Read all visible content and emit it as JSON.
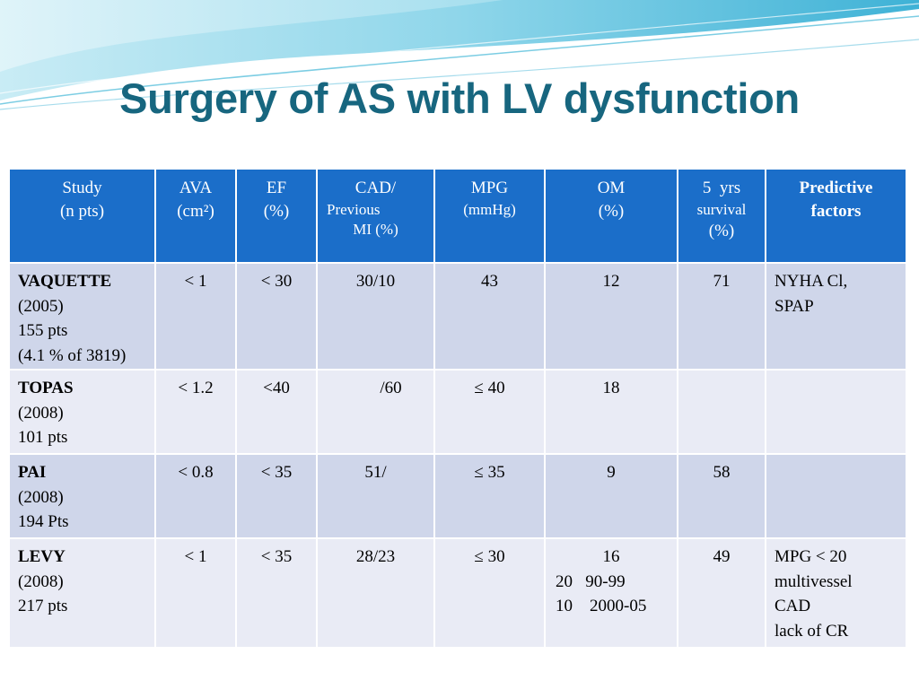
{
  "title": "Surgery of AS with LV dysfunction",
  "header": {
    "study": [
      "Study",
      "(n pts)"
    ],
    "ava": [
      "AVA",
      "(cm²)"
    ],
    "ef": [
      "EF",
      "(%)"
    ],
    "cad": [
      "CAD/",
      "Previous",
      "MI (%)"
    ],
    "mpg": [
      "MPG",
      "(mmHg)"
    ],
    "om": [
      "OM",
      "(%)"
    ],
    "survival": [
      "5  yrs",
      "survival",
      "(%)"
    ],
    "predictive": [
      "Predictive",
      "factors"
    ]
  },
  "rows": [
    {
      "study": [
        "VAQUETTE",
        "(2005)",
        "155 pts",
        "(4.1 % of 3819)"
      ],
      "ava": "< 1",
      "ef": "< 30",
      "cad": "30/10",
      "mpg": "43",
      "om": [
        "12"
      ],
      "survival": "71",
      "predictive": [
        "NYHA Cl,",
        "SPAP"
      ]
    },
    {
      "study": [
        "TOPAS",
        "(2008)",
        "101 pts"
      ],
      "ava": "< 1.2",
      "ef": "<40",
      "cad": "/60",
      "mpg": "≤ 40",
      "om": [
        "18"
      ],
      "survival": "",
      "predictive": []
    },
    {
      "study": [
        "PAI",
        "(2008)",
        "194 Pts"
      ],
      "ava": "< 0.8",
      "ef": "< 35",
      "cad": "51/",
      "mpg": "≤ 35",
      "om": [
        "9"
      ],
      "survival": "58",
      "predictive": []
    },
    {
      "study": [
        "LEVY",
        "(2008)",
        "217 pts"
      ],
      "ava": "< 1",
      "ef": "< 35",
      "cad": "28/23",
      "mpg": "≤ 30",
      "om": [
        "16",
        "20   90-99",
        "10    2000-05"
      ],
      "survival": "49",
      "predictive": [
        "MPG < 20",
        "multivessel",
        "CAD",
        "lack of CR"
      ]
    }
  ]
}
